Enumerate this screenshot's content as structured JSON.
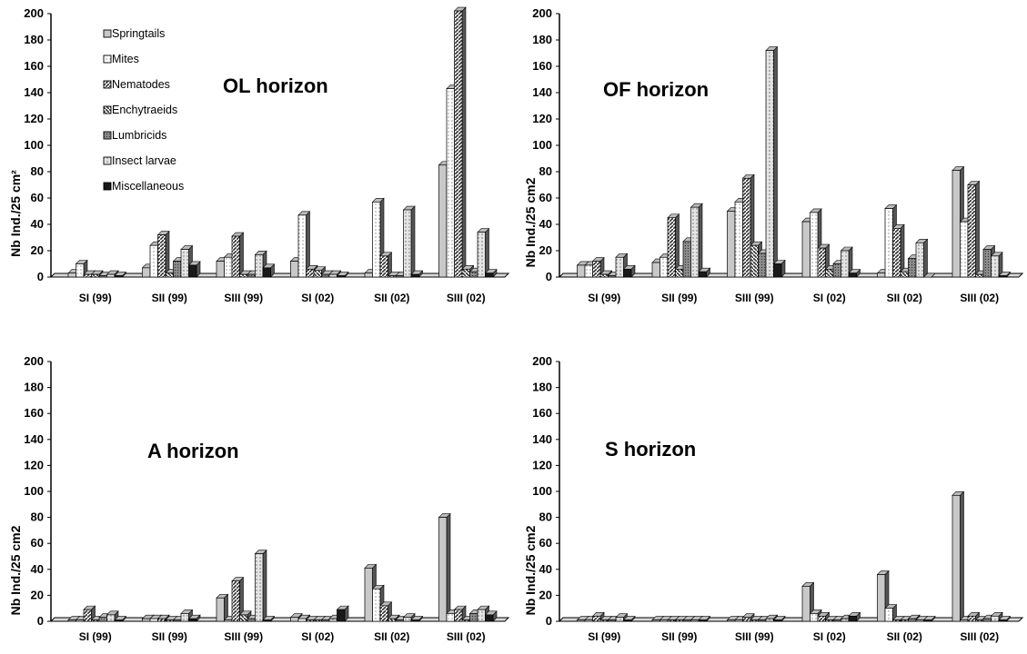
{
  "series": [
    {
      "name": "Springtails",
      "color": "#c8c8c8",
      "pattern": "solid"
    },
    {
      "name": "Mites",
      "color": "#ffffff",
      "pattern": "dots"
    },
    {
      "name": "Nematodes",
      "color": "#7a7a7a",
      "pattern": "diag"
    },
    {
      "name": "Enchytraeids",
      "color": "#a0a0a0",
      "pattern": "diag2"
    },
    {
      "name": "Lumbricids",
      "color": "#7a7a7a",
      "pattern": "grid"
    },
    {
      "name": "Insect larvae",
      "color": "#d8d8d8",
      "pattern": "hdots"
    },
    {
      "name": "Miscellaneous",
      "color": "#1a1a1a",
      "pattern": "solid"
    }
  ],
  "chart_data": [
    {
      "type": "bar",
      "title": "OL horizon",
      "ylabel": "Nb Ind./25 cm²",
      "ylim": [
        0,
        200
      ],
      "yticks": [
        "0",
        "20",
        "40",
        "60",
        "80",
        "100",
        "120",
        "140",
        "160",
        "180",
        "200"
      ],
      "categories": [
        "SI (99)",
        "SII (99)",
        "SIII (99)",
        "SI (02)",
        "SII (02)",
        "SIII (02)"
      ],
      "legend": "top-left",
      "series": [
        {
          "name": "Springtails",
          "values": [
            3,
            7,
            12,
            12,
            3,
            85
          ]
        },
        {
          "name": "Mites",
          "values": [
            10,
            24,
            15,
            47,
            57,
            143
          ]
        },
        {
          "name": "Nematodes",
          "values": [
            2,
            32,
            31,
            6,
            16,
            202
          ]
        },
        {
          "name": "Enchytraeids",
          "values": [
            2,
            3,
            2,
            5,
            1,
            6
          ]
        },
        {
          "name": "Lumbricids",
          "values": [
            1,
            12,
            2,
            2,
            1,
            4
          ]
        },
        {
          "name": "Insect larvae",
          "values": [
            2,
            21,
            17,
            2,
            51,
            34
          ]
        },
        {
          "name": "Miscellaneous",
          "values": [
            1,
            9,
            7,
            1,
            2,
            3
          ]
        }
      ]
    },
    {
      "type": "bar",
      "title": "OF horizon",
      "ylabel": "Nb Ind./25 cm2",
      "ylim": [
        0,
        200
      ],
      "yticks": [
        "0",
        "20",
        "40",
        "60",
        "80",
        "100",
        "120",
        "140",
        "160",
        "180",
        "200"
      ],
      "categories": [
        "SI (99)",
        "SII (99)",
        "SIII (99)",
        "SI (02)",
        "SII (02)",
        "SIII (02)"
      ],
      "series": [
        {
          "name": "Springtails",
          "values": [
            9,
            11,
            50,
            42,
            3,
            81
          ]
        },
        {
          "name": "Mites",
          "values": [
            9,
            15,
            57,
            49,
            52,
            42
          ]
        },
        {
          "name": "Nematodes",
          "values": [
            12,
            45,
            75,
            22,
            37,
            70
          ]
        },
        {
          "name": "Enchytraeids",
          "values": [
            2,
            6,
            24,
            6,
            4,
            2
          ]
        },
        {
          "name": "Lumbricids",
          "values": [
            1,
            27,
            18,
            10,
            14,
            21
          ]
        },
        {
          "name": "Insect larvae",
          "values": [
            15,
            53,
            172,
            20,
            26,
            16
          ]
        },
        {
          "name": "Miscellaneous",
          "values": [
            6,
            4,
            10,
            3,
            0,
            1
          ]
        }
      ]
    },
    {
      "type": "bar",
      "title": "A horizon",
      "ylabel": "Nb Ind./25 cm2",
      "ylim": [
        0,
        200
      ],
      "yticks": [
        "0",
        "20",
        "40",
        "60",
        "80",
        "100",
        "120",
        "140",
        "160",
        "180",
        "200"
      ],
      "categories": [
        "SI (99)",
        "SII (99)",
        "SIII (99)",
        "SI (02)",
        "SII (02)",
        "SIII (02)"
      ],
      "series": [
        {
          "name": "Springtails",
          "values": [
            1,
            2,
            18,
            3,
            41,
            80
          ]
        },
        {
          "name": "Mites",
          "values": [
            1,
            2,
            1,
            2,
            25,
            6
          ]
        },
        {
          "name": "Nematodes",
          "values": [
            9,
            2,
            31,
            1,
            12,
            9
          ]
        },
        {
          "name": "Enchytraeids",
          "values": [
            1,
            1,
            5,
            1,
            2,
            1
          ]
        },
        {
          "name": "Lumbricids",
          "values": [
            3,
            1,
            2,
            1,
            1,
            6
          ]
        },
        {
          "name": "Insect larvae",
          "values": [
            5,
            6,
            52,
            2,
            3,
            9
          ]
        },
        {
          "name": "Miscellaneous",
          "values": [
            1,
            2,
            1,
            9,
            1,
            5
          ]
        }
      ]
    },
    {
      "type": "bar",
      "title": "S horizon",
      "ylabel": "Nb Ind./25 cm2",
      "ylim": [
        0,
        200
      ],
      "yticks": [
        "0",
        "20",
        "40",
        "60",
        "80",
        "100",
        "120",
        "140",
        "160",
        "180",
        "200"
      ],
      "categories": [
        "SI (99)",
        "SII (99)",
        "SIII (99)",
        "SI (02)",
        "SII (02)",
        "SIII (02)"
      ],
      "series": [
        {
          "name": "Springtails",
          "values": [
            1,
            1,
            1,
            27,
            36,
            97
          ]
        },
        {
          "name": "Mites",
          "values": [
            1,
            1,
            1,
            6,
            10,
            1
          ]
        },
        {
          "name": "Nematodes",
          "values": [
            4,
            1,
            3,
            4,
            1,
            4
          ]
        },
        {
          "name": "Enchytraeids",
          "values": [
            1,
            1,
            1,
            1,
            1,
            1
          ]
        },
        {
          "name": "Lumbricids",
          "values": [
            1,
            1,
            1,
            1,
            2,
            2
          ]
        },
        {
          "name": "Insect larvae",
          "values": [
            3,
            1,
            2,
            2,
            1,
            4
          ]
        },
        {
          "name": "Miscellaneous",
          "values": [
            1,
            1,
            1,
            4,
            1,
            1
          ]
        }
      ]
    }
  ]
}
